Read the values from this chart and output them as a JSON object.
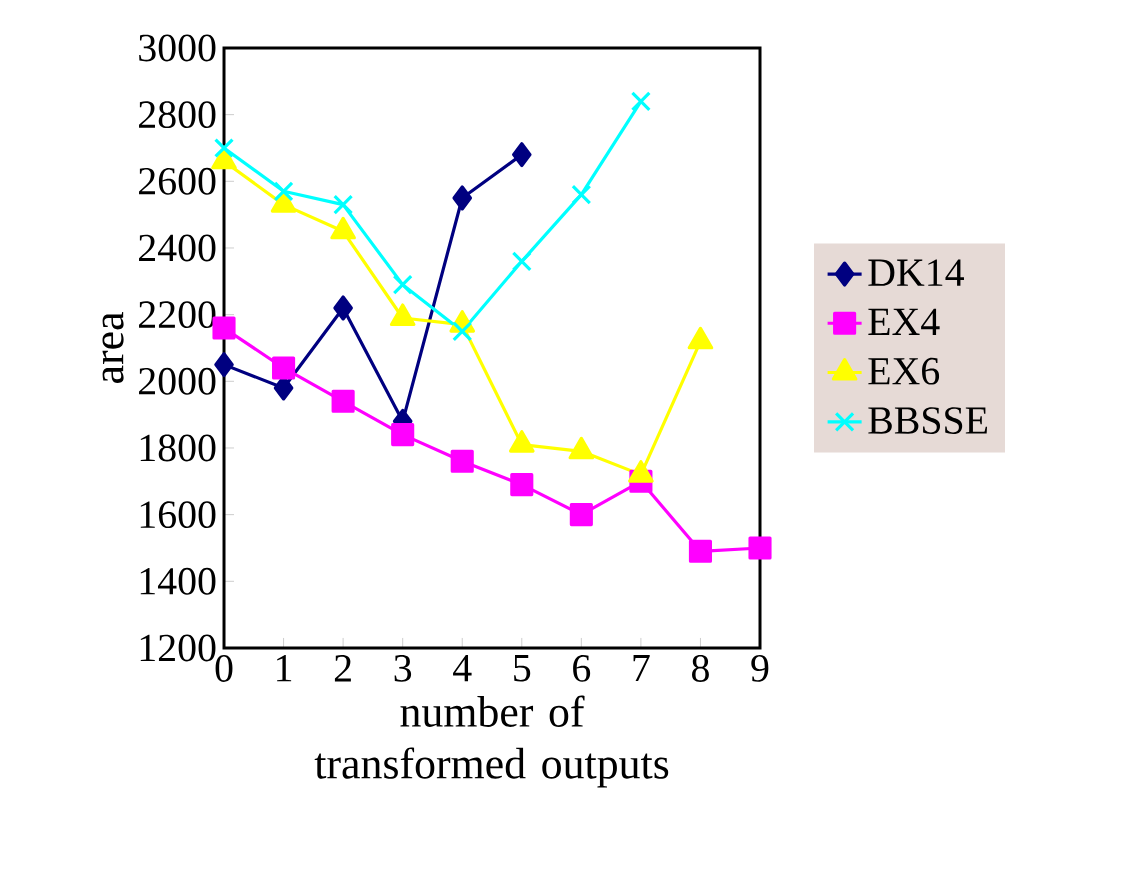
{
  "chart_data": {
    "type": "line",
    "xlabel": "number of transformed outputs",
    "ylabel": "area",
    "x": [
      0,
      1,
      2,
      3,
      4,
      5,
      6,
      7,
      8,
      9
    ],
    "xlim": [
      0,
      9
    ],
    "xticks": [
      0,
      1,
      2,
      3,
      4,
      5,
      6,
      7,
      8,
      9
    ],
    "ylim": [
      1200,
      3000
    ],
    "yticks": [
      1200,
      1400,
      1600,
      1800,
      2000,
      2200,
      2400,
      2600,
      2800,
      3000
    ],
    "grid": false,
    "legend": "right",
    "series": [
      {
        "name": "DK14",
        "color": "#000080",
        "marker": "diamond",
        "values": [
          2050,
          1980,
          2220,
          1880,
          2550,
          2680,
          null,
          null,
          null,
          null
        ]
      },
      {
        "name": "EX4",
        "color": "#ff00ff",
        "marker": "square",
        "values": [
          2160,
          2040,
          1940,
          1840,
          1760,
          1690,
          1600,
          1700,
          1490,
          1500
        ]
      },
      {
        "name": "EX6",
        "color": "#ffff00",
        "marker": "triangle",
        "values": [
          2660,
          2530,
          2450,
          2190,
          2170,
          1810,
          1790,
          1720,
          2120,
          null
        ]
      },
      {
        "name": "BBSSE",
        "color": "#00ffff",
        "marker": "cross",
        "values": [
          2700,
          2570,
          2530,
          2290,
          2150,
          2360,
          2560,
          2840,
          null,
          null
        ]
      }
    ]
  }
}
